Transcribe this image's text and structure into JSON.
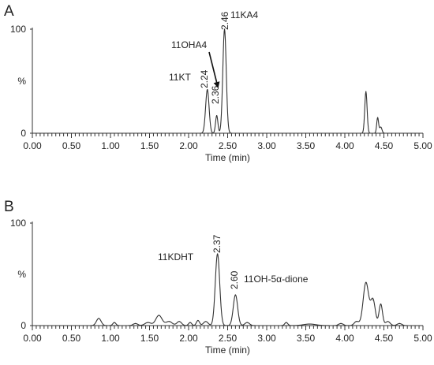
{
  "chart_data": [
    {
      "panel_letter": "A",
      "type": "line",
      "xlabel": "Time (min)",
      "ylabel": "%",
      "xlim": [
        0,
        5.0
      ],
      "ylim": [
        0,
        100
      ],
      "x_ticks": [
        "0.00",
        "0.50",
        "1.00",
        "1.50",
        "2.00",
        "2.50",
        "3.00",
        "3.50",
        "4.00",
        "4.50",
        "5.00"
      ],
      "y_ticks": [
        "0",
        "%",
        "100"
      ],
      "peaks": [
        {
          "rt": 2.24,
          "height": 42,
          "width": 0.022
        },
        {
          "rt": 2.36,
          "height": 17,
          "width": 0.015
        },
        {
          "rt": 2.46,
          "height": 100,
          "width": 0.022
        },
        {
          "rt": 4.27,
          "height": 40,
          "width": 0.015
        },
        {
          "rt": 4.42,
          "height": 15,
          "width": 0.012
        },
        {
          "rt": 4.46,
          "height": 6,
          "width": 0.015
        }
      ],
      "annotations": [
        {
          "label": "11KT",
          "rt": "2.24"
        },
        {
          "label": "11OHA4",
          "rt": "2.36"
        },
        {
          "label": "11KA4",
          "rt": "2.46"
        }
      ]
    },
    {
      "panel_letter": "B",
      "type": "line",
      "xlabel": "Time (min)",
      "ylabel": "%",
      "xlim": [
        0,
        5.0
      ],
      "ylim": [
        0,
        100
      ],
      "x_ticks": [
        "0.00",
        "0.50",
        "1.00",
        "1.50",
        "2.00",
        "2.50",
        "3.00",
        "3.50",
        "4.00",
        "4.50",
        "5.00"
      ],
      "y_ticks": [
        "0",
        "%",
        "100"
      ],
      "peaks": [
        {
          "rt": 0.85,
          "height": 7,
          "width": 0.03
        },
        {
          "rt": 1.05,
          "height": 3,
          "width": 0.02
        },
        {
          "rt": 1.32,
          "height": 2,
          "width": 0.03
        },
        {
          "rt": 1.48,
          "height": 3,
          "width": 0.04
        },
        {
          "rt": 1.62,
          "height": 10,
          "width": 0.04
        },
        {
          "rt": 1.75,
          "height": 4,
          "width": 0.04
        },
        {
          "rt": 1.88,
          "height": 4,
          "width": 0.03
        },
        {
          "rt": 2.02,
          "height": 3,
          "width": 0.02
        },
        {
          "rt": 2.12,
          "height": 5,
          "width": 0.02
        },
        {
          "rt": 2.22,
          "height": 4,
          "width": 0.03
        },
        {
          "rt": 2.37,
          "height": 70,
          "width": 0.028
        },
        {
          "rt": 2.6,
          "height": 30,
          "width": 0.028
        },
        {
          "rt": 2.75,
          "height": 3,
          "width": 0.03
        },
        {
          "rt": 3.25,
          "height": 3,
          "width": 0.02
        },
        {
          "rt": 3.55,
          "height": 1.5,
          "width": 0.08
        },
        {
          "rt": 3.95,
          "height": 2,
          "width": 0.03
        },
        {
          "rt": 4.15,
          "height": 4,
          "width": 0.03
        },
        {
          "rt": 4.27,
          "height": 42,
          "width": 0.035
        },
        {
          "rt": 4.36,
          "height": 25,
          "width": 0.03
        },
        {
          "rt": 4.46,
          "height": 21,
          "width": 0.022
        },
        {
          "rt": 4.55,
          "height": 4,
          "width": 0.03
        },
        {
          "rt": 4.7,
          "height": 2,
          "width": 0.03
        }
      ],
      "annotations": [
        {
          "label": "11KDHT",
          "rt": "2.37"
        },
        {
          "label": "11OH-5α-dione",
          "rt": "2.60"
        }
      ]
    }
  ]
}
